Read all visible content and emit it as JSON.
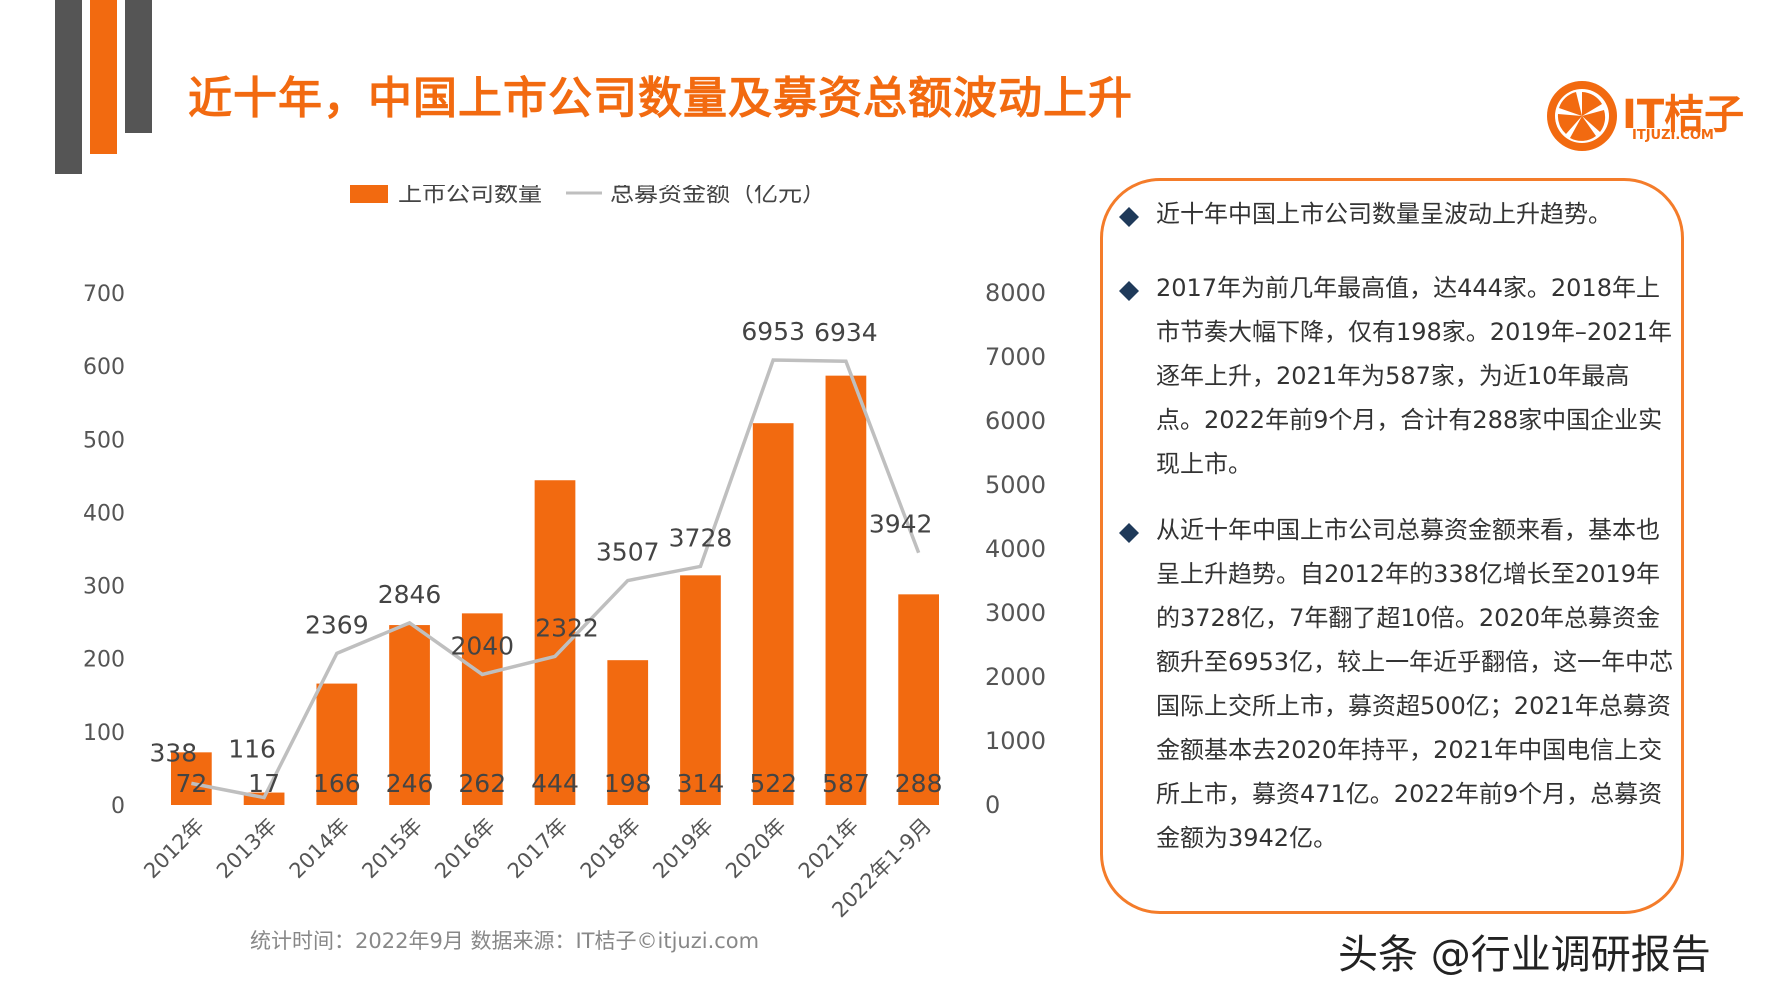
{
  "header": {
    "title": "近十年，中国上市公司数量及募资总额波动上升",
    "logo_text": "IT桔子",
    "logo_sub": "ITJUZI.COM",
    "decor_colors": [
      "#555555",
      "#f26a10",
      "#555555"
    ]
  },
  "chart_data": {
    "type": "bar",
    "categories": [
      "2012年",
      "2013年",
      "2014年",
      "2015年",
      "2016年",
      "2017年",
      "2018年",
      "2019年",
      "2020年",
      "2021年",
      "2022年1-9月"
    ],
    "series": [
      {
        "name": "上市公司数量",
        "type": "bar",
        "axis": "left",
        "color": "#f26a10",
        "values": [
          72,
          17,
          166,
          246,
          262,
          444,
          198,
          314,
          522,
          587,
          288
        ]
      },
      {
        "name": "总募资金额（亿元）",
        "type": "line",
        "axis": "right",
        "color": "#bfbfbf",
        "values": [
          338,
          116,
          2369,
          2846,
          2040,
          2322,
          3507,
          3728,
          6953,
          6934,
          3942
        ]
      }
    ],
    "left_axis": {
      "min": 0,
      "max": 700,
      "ticks": [
        0,
        100,
        200,
        300,
        400,
        500,
        600,
        700
      ]
    },
    "right_axis": {
      "min": 0,
      "max": 8000,
      "ticks": [
        0,
        1000,
        2000,
        3000,
        4000,
        5000,
        6000,
        7000,
        8000
      ]
    },
    "legend_position": "top",
    "grid": false
  },
  "footnote": "统计时间：2022年9月  数据来源：IT桔子©itjuzi.com",
  "notes": [
    "近十年中国上市公司数量呈波动上升趋势。",
    "2017年为前几年最高值，达444家。2018年上市节奏大幅下降，仅有198家。2019年–2021年逐年上升，2021年为587家，为近10年最高点。2022年前9个月，合计有288家中国企业实现上市。",
    "从近十年中国上市公司总募资金额来看，基本也呈上升趋势。自2012年的338亿增长至2019年的3728亿，7年翻了超10倍。2020年总募资金额升至6953亿，较上一年近乎翻倍，这一年中芯国际上交所上市，募资超500亿；2021年总募资金额基本去2020年持平，2021年中国电信上交所上市，募资471亿。2022年前9个月，总募资金额为3942亿。"
  ],
  "watermark": "头条 @行业调研报告",
  "colors": {
    "accent": "#f26a10",
    "line": "#bfbfbf",
    "border": "#f47c2a",
    "bullet": "#1f3a5a"
  }
}
